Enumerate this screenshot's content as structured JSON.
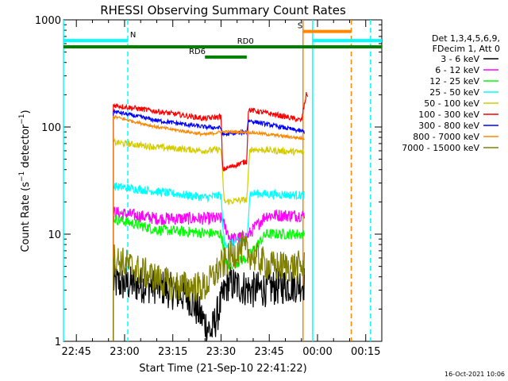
{
  "chart_data": {
    "type": "line",
    "title": "RHESSI Observing Summary Count Rates",
    "xlabel": "Start Time (21-Sep-10 22:41:22)",
    "ylabel": "Count Rate (s^-1 detector^-1)",
    "ylabel_parts": {
      "pre": "Count Rate (s",
      "sup": "−1",
      "post": " detector",
      "sup2": "−1",
      "end": ")"
    },
    "y_scale": "log",
    "ylim": [
      1,
      1000
    ],
    "xlim_minutes": [
      -19,
      80
    ],
    "x_ticks": [
      {
        "t": -15,
        "label": "22:45"
      },
      {
        "t": 0,
        "label": "23:00"
      },
      {
        "t": 15,
        "label": "23:15"
      },
      {
        "t": 30,
        "label": "23:30"
      },
      {
        "t": 45,
        "label": "23:45"
      },
      {
        "t": 60,
        "label": "00:00"
      },
      {
        "t": 75,
        "label": "00:15"
      }
    ],
    "y_ticks": [
      {
        "v": 1,
        "label": "1"
      },
      {
        "v": 10,
        "label": "10"
      },
      {
        "v": 100,
        "label": "100"
      },
      {
        "v": 1000,
        "label": "1000"
      }
    ],
    "legend": {
      "position": "right",
      "header": [
        "Det 1,3,4,5,6,9,",
        "FDecim 1, Att 0"
      ],
      "entries": [
        {
          "label": "3 - 6 keV",
          "color": "#000000"
        },
        {
          "label": "6 - 12 keV",
          "color": "#ff00ff"
        },
        {
          "label": "12 - 25 keV",
          "color": "#00ff00"
        },
        {
          "label": "25 - 50 keV",
          "color": "#00ffff"
        },
        {
          "label": "50 - 100 keV",
          "color": "#d4cc00"
        },
        {
          "label": "100 - 300 keV",
          "color": "#ff0000"
        },
        {
          "label": "300 - 800 keV",
          "color": "#0000ff"
        },
        {
          "label": "800 - 7000 keV",
          "color": "#ff8800"
        },
        {
          "label": "7000 - 15000 keV",
          "color": "#808000"
        }
      ]
    },
    "series": [
      {
        "name": "3 - 6 keV",
        "color": "#000000",
        "noise": 0.35,
        "segments": [
          {
            "t0": -3.5,
            "t1": 56,
            "points": [
              [
                -3.5,
                3.5
              ],
              [
                10,
                3.3
              ],
              [
                20,
                2.6
              ],
              [
                27,
                1.2
              ],
              [
                32,
                3.5
              ],
              [
                40,
                3.0
              ],
              [
                50,
                3.3
              ],
              [
                56,
                3.5
              ]
            ]
          }
        ]
      },
      {
        "name": "6 - 12 keV",
        "color": "#ff00ff",
        "noise": 0.12,
        "segments": [
          {
            "t0": -3.5,
            "t1": 56,
            "points": [
              [
                -3.5,
                16
              ],
              [
                10,
                14
              ],
              [
                30,
                14
              ],
              [
                33,
                9
              ],
              [
                38,
                9.5
              ],
              [
                44,
                15
              ],
              [
                56,
                15
              ]
            ]
          }
        ]
      },
      {
        "name": "12 - 25 keV",
        "color": "#00ff00",
        "noise": 0.1,
        "segments": [
          {
            "t0": -3.5,
            "t1": 56,
            "points": [
              [
                -3.5,
                14
              ],
              [
                10,
                11
              ],
              [
                30,
                10
              ],
              [
                32,
                5
              ],
              [
                38,
                6
              ],
              [
                44,
                10
              ],
              [
                56,
                10
              ]
            ]
          }
        ]
      },
      {
        "name": "25 - 50 keV",
        "color": "#00ffff",
        "noise": 0.08,
        "segments": [
          {
            "t0": -3.5,
            "t1": 56,
            "points": [
              [
                -3.5,
                28
              ],
              [
                10,
                25
              ],
              [
                25,
                22
              ],
              [
                30,
                23
              ],
              [
                31,
                8
              ],
              [
                38,
                9
              ],
              [
                39,
                24
              ],
              [
                56,
                23
              ]
            ]
          }
        ]
      },
      {
        "name": "50 - 100 keV",
        "color": "#d4cc00",
        "noise": 0.06,
        "segments": [
          {
            "t0": -3.5,
            "t1": 56,
            "points": [
              [
                -3.5,
                72
              ],
              [
                10,
                65
              ],
              [
                25,
                60
              ],
              [
                30,
                62
              ],
              [
                31,
                20
              ],
              [
                38,
                21
              ],
              [
                39,
                62
              ],
              [
                56,
                58
              ]
            ]
          }
        ]
      },
      {
        "name": "100 - 300 keV",
        "color": "#ff0000",
        "noise": 0.05,
        "segments": [
          {
            "t0": -3.5,
            "t1": 57,
            "points": [
              [
                -3.5,
                160
              ],
              [
                10,
                140
              ],
              [
                25,
                120
              ],
              [
                30,
                125
              ],
              [
                30.5,
                40
              ],
              [
                38,
                48
              ],
              [
                38.5,
                145
              ],
              [
                50,
                125
              ],
              [
                55,
                115
              ],
              [
                56.5,
                200
              ]
            ]
          }
        ]
      },
      {
        "name": "300 - 800 keV",
        "color": "#0000ff",
        "noise": 0.04,
        "segments": [
          {
            "t0": -3.5,
            "t1": 56,
            "points": [
              [
                -3.5,
                140
              ],
              [
                10,
                115
              ],
              [
                25,
                100
              ],
              [
                30,
                98
              ],
              [
                30.5,
                85
              ],
              [
                38,
                90
              ],
              [
                38.5,
                115
              ],
              [
                56,
                90
              ]
            ]
          }
        ]
      },
      {
        "name": "800 - 7000 keV",
        "color": "#ff8800",
        "noise": 0.03,
        "segments": [
          {
            "t0": -3.5,
            "t1": 56,
            "points": [
              [
                -3.5,
                125
              ],
              [
                10,
                100
              ],
              [
                25,
                85
              ],
              [
                30,
                90
              ],
              [
                38,
                90
              ],
              [
                45,
                85
              ],
              [
                56,
                78
              ]
            ]
          }
        ]
      },
      {
        "name": "7000 - 15000 keV",
        "color": "#808000",
        "noise": 0.3,
        "segments": [
          {
            "t0": -3.5,
            "t1": 56,
            "points": [
              [
                -3.5,
                6
              ],
              [
                5,
                4.5
              ],
              [
                15,
                3.3
              ],
              [
                25,
                3.2
              ],
              [
                30,
                5
              ],
              [
                36,
                7.5
              ],
              [
                45,
                5
              ],
              [
                56,
                5
              ]
            ]
          }
        ]
      }
    ],
    "vertical_lines": [
      {
        "t": -19,
        "color": "#00ffff",
        "style": "solid"
      },
      {
        "t": 1,
        "color": "#00ffff",
        "style": "dashed"
      },
      {
        "t": 55.5,
        "color": "#ff8800",
        "style": "solid"
      },
      {
        "t": 58.5,
        "color": "#00ffff",
        "style": "solid"
      },
      {
        "t": 70.5,
        "color": "#ff8800",
        "style": "dashed"
      },
      {
        "t": 76.5,
        "color": "#00ffff",
        "style": "dashed"
      }
    ],
    "top_bars": [
      {
        "t0": -19,
        "t1": 1,
        "v": 640,
        "color": "#00ffff",
        "label": "N",
        "label_t": 1.7
      },
      {
        "t0": 58.5,
        "t1": 80,
        "v": 640,
        "color": "#00ffff",
        "label": "",
        "label_t": 0
      },
      {
        "t0": -19,
        "t1": 80,
        "v": 560,
        "color": "#008000",
        "label": "RD0",
        "label_t": 35
      },
      {
        "t0": 25,
        "t1": 38,
        "v": 450,
        "color": "#008000",
        "label": "RD6",
        "label_t": 20
      },
      {
        "t0": 55.5,
        "t1": 70.5,
        "v": 780,
        "color": "#ff8800",
        "label": "S",
        "label_t": 53.8
      }
    ],
    "footer": "16-Oct-2021 10:06"
  }
}
